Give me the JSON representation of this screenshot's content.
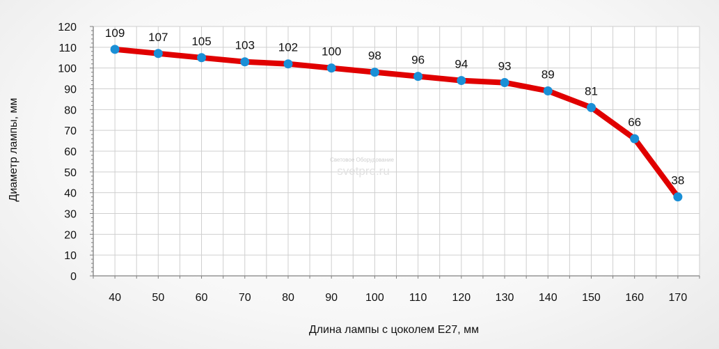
{
  "chart_data": {
    "type": "line",
    "title": "",
    "xlabel": "Длина лампы с цоколем E27, мм",
    "ylabel": "Диаметр лампы, мм",
    "x": [
      40,
      50,
      60,
      70,
      80,
      90,
      100,
      110,
      120,
      130,
      140,
      150,
      160,
      170
    ],
    "series": [
      {
        "values": [
          109,
          107,
          105,
          103,
          102,
          100,
          98,
          96,
          94,
          93,
          89,
          81,
          66,
          38
        ]
      }
    ],
    "xlim": [
      35,
      175
    ],
    "ylim": [
      0,
      120
    ],
    "y_ticks": [
      0,
      10,
      20,
      30,
      40,
      50,
      60,
      70,
      80,
      90,
      100,
      110,
      120
    ],
    "grid": true,
    "legend": "none",
    "line_color": "#e00000",
    "marker_color": "#1a8fd6",
    "grid_color": "#cfcfcf",
    "axis_color": "#808080"
  },
  "watermark": {
    "line1": "Световое Оборудование",
    "line2": "svetpro.ru"
  }
}
